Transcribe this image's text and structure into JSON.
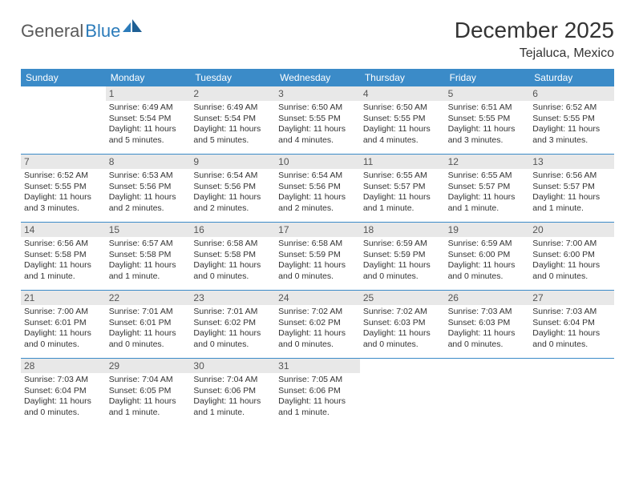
{
  "logo": {
    "text1": "General",
    "text2": "Blue"
  },
  "title": "December 2025",
  "location": "Tejaluca, Mexico",
  "weekdays": [
    "Sunday",
    "Monday",
    "Tuesday",
    "Wednesday",
    "Thursday",
    "Friday",
    "Saturday"
  ],
  "colors": {
    "header_bar": "#3b8bc8",
    "daynum_bg": "#e8e8e8",
    "week_divider": "#3b8bc8",
    "logo_gray": "#5a5a5a",
    "logo_blue": "#2b7bba"
  },
  "weeks": [
    [
      {
        "num": "",
        "sunrise": "",
        "sunset": "",
        "daylight": "",
        "empty": true
      },
      {
        "num": "1",
        "sunrise": "Sunrise: 6:49 AM",
        "sunset": "Sunset: 5:54 PM",
        "daylight": "Daylight: 11 hours and 5 minutes."
      },
      {
        "num": "2",
        "sunrise": "Sunrise: 6:49 AM",
        "sunset": "Sunset: 5:54 PM",
        "daylight": "Daylight: 11 hours and 5 minutes."
      },
      {
        "num": "3",
        "sunrise": "Sunrise: 6:50 AM",
        "sunset": "Sunset: 5:55 PM",
        "daylight": "Daylight: 11 hours and 4 minutes."
      },
      {
        "num": "4",
        "sunrise": "Sunrise: 6:50 AM",
        "sunset": "Sunset: 5:55 PM",
        "daylight": "Daylight: 11 hours and 4 minutes."
      },
      {
        "num": "5",
        "sunrise": "Sunrise: 6:51 AM",
        "sunset": "Sunset: 5:55 PM",
        "daylight": "Daylight: 11 hours and 3 minutes."
      },
      {
        "num": "6",
        "sunrise": "Sunrise: 6:52 AM",
        "sunset": "Sunset: 5:55 PM",
        "daylight": "Daylight: 11 hours and 3 minutes."
      }
    ],
    [
      {
        "num": "7",
        "sunrise": "Sunrise: 6:52 AM",
        "sunset": "Sunset: 5:55 PM",
        "daylight": "Daylight: 11 hours and 3 minutes."
      },
      {
        "num": "8",
        "sunrise": "Sunrise: 6:53 AM",
        "sunset": "Sunset: 5:56 PM",
        "daylight": "Daylight: 11 hours and 2 minutes."
      },
      {
        "num": "9",
        "sunrise": "Sunrise: 6:54 AM",
        "sunset": "Sunset: 5:56 PM",
        "daylight": "Daylight: 11 hours and 2 minutes."
      },
      {
        "num": "10",
        "sunrise": "Sunrise: 6:54 AM",
        "sunset": "Sunset: 5:56 PM",
        "daylight": "Daylight: 11 hours and 2 minutes."
      },
      {
        "num": "11",
        "sunrise": "Sunrise: 6:55 AM",
        "sunset": "Sunset: 5:57 PM",
        "daylight": "Daylight: 11 hours and 1 minute."
      },
      {
        "num": "12",
        "sunrise": "Sunrise: 6:55 AM",
        "sunset": "Sunset: 5:57 PM",
        "daylight": "Daylight: 11 hours and 1 minute."
      },
      {
        "num": "13",
        "sunrise": "Sunrise: 6:56 AM",
        "sunset": "Sunset: 5:57 PM",
        "daylight": "Daylight: 11 hours and 1 minute."
      }
    ],
    [
      {
        "num": "14",
        "sunrise": "Sunrise: 6:56 AM",
        "sunset": "Sunset: 5:58 PM",
        "daylight": "Daylight: 11 hours and 1 minute."
      },
      {
        "num": "15",
        "sunrise": "Sunrise: 6:57 AM",
        "sunset": "Sunset: 5:58 PM",
        "daylight": "Daylight: 11 hours and 1 minute."
      },
      {
        "num": "16",
        "sunrise": "Sunrise: 6:58 AM",
        "sunset": "Sunset: 5:58 PM",
        "daylight": "Daylight: 11 hours and 0 minutes."
      },
      {
        "num": "17",
        "sunrise": "Sunrise: 6:58 AM",
        "sunset": "Sunset: 5:59 PM",
        "daylight": "Daylight: 11 hours and 0 minutes."
      },
      {
        "num": "18",
        "sunrise": "Sunrise: 6:59 AM",
        "sunset": "Sunset: 5:59 PM",
        "daylight": "Daylight: 11 hours and 0 minutes."
      },
      {
        "num": "19",
        "sunrise": "Sunrise: 6:59 AM",
        "sunset": "Sunset: 6:00 PM",
        "daylight": "Daylight: 11 hours and 0 minutes."
      },
      {
        "num": "20",
        "sunrise": "Sunrise: 7:00 AM",
        "sunset": "Sunset: 6:00 PM",
        "daylight": "Daylight: 11 hours and 0 minutes."
      }
    ],
    [
      {
        "num": "21",
        "sunrise": "Sunrise: 7:00 AM",
        "sunset": "Sunset: 6:01 PM",
        "daylight": "Daylight: 11 hours and 0 minutes."
      },
      {
        "num": "22",
        "sunrise": "Sunrise: 7:01 AM",
        "sunset": "Sunset: 6:01 PM",
        "daylight": "Daylight: 11 hours and 0 minutes."
      },
      {
        "num": "23",
        "sunrise": "Sunrise: 7:01 AM",
        "sunset": "Sunset: 6:02 PM",
        "daylight": "Daylight: 11 hours and 0 minutes."
      },
      {
        "num": "24",
        "sunrise": "Sunrise: 7:02 AM",
        "sunset": "Sunset: 6:02 PM",
        "daylight": "Daylight: 11 hours and 0 minutes."
      },
      {
        "num": "25",
        "sunrise": "Sunrise: 7:02 AM",
        "sunset": "Sunset: 6:03 PM",
        "daylight": "Daylight: 11 hours and 0 minutes."
      },
      {
        "num": "26",
        "sunrise": "Sunrise: 7:03 AM",
        "sunset": "Sunset: 6:03 PM",
        "daylight": "Daylight: 11 hours and 0 minutes."
      },
      {
        "num": "27",
        "sunrise": "Sunrise: 7:03 AM",
        "sunset": "Sunset: 6:04 PM",
        "daylight": "Daylight: 11 hours and 0 minutes."
      }
    ],
    [
      {
        "num": "28",
        "sunrise": "Sunrise: 7:03 AM",
        "sunset": "Sunset: 6:04 PM",
        "daylight": "Daylight: 11 hours and 0 minutes."
      },
      {
        "num": "29",
        "sunrise": "Sunrise: 7:04 AM",
        "sunset": "Sunset: 6:05 PM",
        "daylight": "Daylight: 11 hours and 1 minute."
      },
      {
        "num": "30",
        "sunrise": "Sunrise: 7:04 AM",
        "sunset": "Sunset: 6:06 PM",
        "daylight": "Daylight: 11 hours and 1 minute."
      },
      {
        "num": "31",
        "sunrise": "Sunrise: 7:05 AM",
        "sunset": "Sunset: 6:06 PM",
        "daylight": "Daylight: 11 hours and 1 minute."
      },
      {
        "num": "",
        "sunrise": "",
        "sunset": "",
        "daylight": "",
        "empty": true
      },
      {
        "num": "",
        "sunrise": "",
        "sunset": "",
        "daylight": "",
        "empty": true
      },
      {
        "num": "",
        "sunrise": "",
        "sunset": "",
        "daylight": "",
        "empty": true
      }
    ]
  ]
}
